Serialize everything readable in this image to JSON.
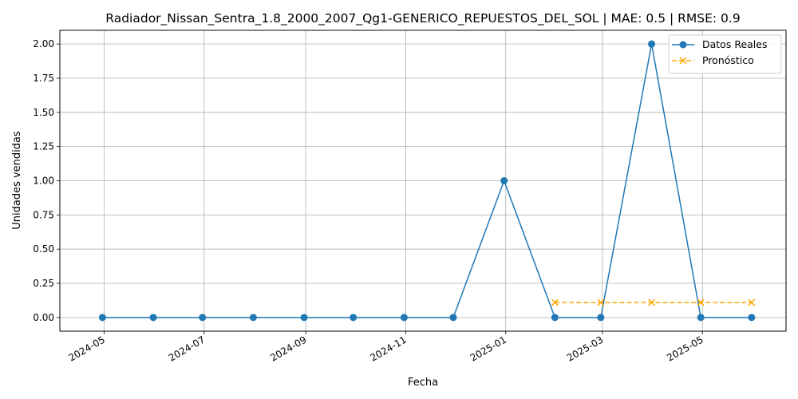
{
  "chart_data": {
    "type": "line",
    "title": "Radiador_Nissan_Sentra_1.8_2000_2007_Qg1-GENERICO_REPUESTOS_DEL_SOL | MAE: 0.5 | RMSE: 0.9",
    "xlabel": "Fecha",
    "ylabel": "Unidades vendidas",
    "xlim": [
      "2024-04-04",
      "2025-06-21"
    ],
    "ylim": [
      -0.1,
      2.1
    ],
    "x_ticks": [
      "2024-05",
      "2024-07",
      "2024-09",
      "2024-11",
      "2025-01",
      "2025-03",
      "2025-05"
    ],
    "y_ticks": [
      "0.00",
      "0.25",
      "0.50",
      "0.75",
      "1.00",
      "1.25",
      "1.50",
      "1.75",
      "2.00"
    ],
    "grid": true,
    "legend_position": "top-right",
    "series": [
      {
        "name": "Datos Reales",
        "color": "#1f77b4",
        "marker": "circle",
        "line_style": "solid",
        "x": [
          "2024-04-30",
          "2024-05-31",
          "2024-06-30",
          "2024-07-31",
          "2024-08-31",
          "2024-09-30",
          "2024-10-31",
          "2024-11-30",
          "2024-12-31",
          "2025-01-31",
          "2025-02-28",
          "2025-03-31",
          "2025-04-30",
          "2025-05-31"
        ],
        "values": [
          0,
          0,
          0,
          0,
          0,
          0,
          0,
          0,
          1,
          0,
          0,
          2,
          0,
          0
        ]
      },
      {
        "name": "Pronóstico",
        "color": "#ffa500",
        "marker": "x",
        "line_style": "dashed",
        "x": [
          "2025-01-31",
          "2025-02-28",
          "2025-03-31",
          "2025-04-30",
          "2025-05-31"
        ],
        "values": [
          0.11,
          0.11,
          0.11,
          0.11,
          0.11
        ]
      }
    ]
  }
}
